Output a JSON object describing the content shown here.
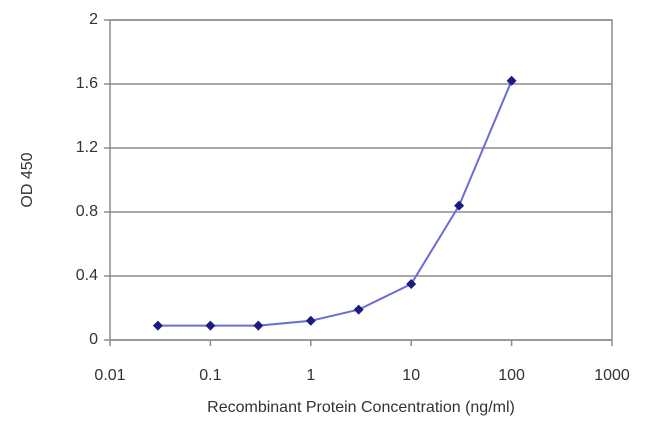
{
  "chart_data": {
    "type": "line",
    "x_label": "Recombinant Protein Concentration (ng/ml)",
    "y_label": "OD 450",
    "x": [
      0.03,
      0.1,
      0.3,
      1,
      3,
      10,
      30,
      100
    ],
    "values": [
      0.09,
      0.09,
      0.09,
      0.12,
      0.19,
      0.35,
      0.84,
      1.62
    ],
    "color": "#6b6bd6",
    "marker_color": "#1c1c80",
    "xscale": "log",
    "xlim": [
      0.01,
      1000
    ],
    "xticks": [
      0.01,
      0.1,
      1,
      10,
      100,
      1000
    ],
    "ylim": [
      0,
      2
    ],
    "yticks": [
      0,
      0.4,
      0.8,
      1.2,
      1.6,
      2
    ],
    "grid": true
  }
}
